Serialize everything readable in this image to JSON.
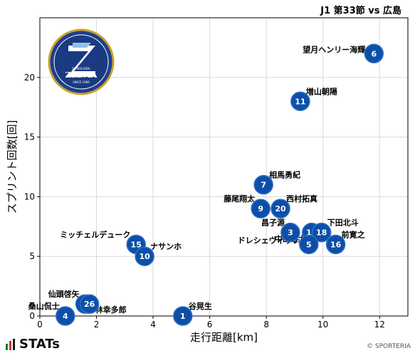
{
  "header": {
    "game_title": "J1 第33節 vs 広島"
  },
  "footer": {
    "brand": "STATs",
    "credit": "© SPORTERIA"
  },
  "logo": {
    "top_text": "FC MACHIDA",
    "name": "ZELVIA",
    "since": "SINCE 1989"
  },
  "colors": {
    "marker": "#0d4fa8",
    "marker_edge": "#2f6fc6",
    "brand_bar_1": "#1a7a3a",
    "brand_bar_2": "#c0392b",
    "brand_bar_3": "#1a1a1a"
  },
  "chart_data": {
    "type": "scatter",
    "xlabel": "走行距離[km]",
    "ylabel": "スプリント回数[回]",
    "xlim": [
      0,
      13
    ],
    "ylim": [
      0,
      25
    ],
    "xticks": [
      0,
      2,
      4,
      6,
      8,
      10,
      12
    ],
    "yticks": [
      0,
      5,
      10,
      15,
      20
    ],
    "points": [
      {
        "number": "6",
        "name": "望月ヘンリー海輝",
        "x": 11.8,
        "y": 22,
        "label_pos": "left"
      },
      {
        "number": "11",
        "name": "増山朝陽",
        "x": 9.2,
        "y": 18,
        "label_pos": "upper-right"
      },
      {
        "number": "7",
        "name": "相馬勇紀",
        "x": 7.9,
        "y": 11,
        "label_pos": "upper-right"
      },
      {
        "number": "9",
        "name": "藤尾翔太",
        "x": 7.8,
        "y": 9,
        "label_pos": "upper-left"
      },
      {
        "number": "20",
        "name": "西村拓真",
        "x": 8.5,
        "y": 9,
        "label_pos": "upper-right"
      },
      {
        "number": "3",
        "name": "昌子源",
        "x": 8.85,
        "y": 7,
        "label_pos": "upper-left"
      },
      {
        "number": "19",
        "name": "中山雄太",
        "x": 9.6,
        "y": 7,
        "label_pos": "lower-left"
      },
      {
        "number": "18",
        "name": "下田北斗",
        "x": 9.95,
        "y": 7,
        "label_pos": "upper-right"
      },
      {
        "number": "5",
        "name": "ドレシェヴィッチ",
        "x": 9.5,
        "y": 6,
        "label_pos": "left"
      },
      {
        "number": "16",
        "name": "前寛之",
        "x": 10.45,
        "y": 6,
        "label_pos": "upper-right"
      },
      {
        "number": "15",
        "name": "ミッチェルデューク",
        "x": 3.4,
        "y": 6,
        "label_pos": "upper-left"
      },
      {
        "number": "10",
        "name": "ナサンホ",
        "x": 3.7,
        "y": 5,
        "label_pos": "upper-right"
      },
      {
        "number": "2",
        "name": "仙頭啓矢",
        "x": 1.6,
        "y": 1,
        "label_pos": "upper-left"
      },
      {
        "number": "26",
        "name": "林幸多郎",
        "x": 1.75,
        "y": 1,
        "label_pos": "lower-right"
      },
      {
        "number": "1",
        "name": "谷晃生",
        "x": 5.05,
        "y": 0,
        "label_pos": "upper-right"
      },
      {
        "number": "4",
        "name": "桑山侃士",
        "x": 0.9,
        "y": 0,
        "label_pos": "upper-left"
      }
    ]
  }
}
